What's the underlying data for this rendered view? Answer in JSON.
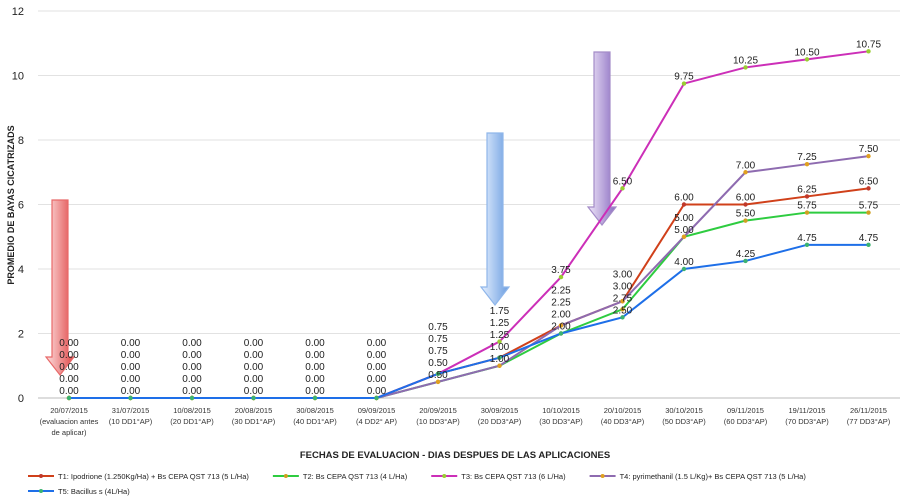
{
  "chart_data": {
    "type": "line",
    "title": "",
    "xlabel": "FECHAS DE EVALUACION - DIAS DESPUES DE LAS APLICACIONES",
    "ylabel": "PROMEDIO DE BAYAS CICATRIZADS",
    "ylim": [
      0,
      12
    ],
    "yticks": [
      0,
      2,
      4,
      6,
      8,
      10,
      12
    ],
    "grid": true,
    "legend_position": "bottom",
    "categories": [
      [
        "20/07/2015",
        "(evaluacion antes",
        "de aplicar)"
      ],
      [
        "31/07/2015",
        "(10 DD1°AP)"
      ],
      [
        "10/08/2015",
        "(20 DD1°AP)"
      ],
      [
        "20/08/2015",
        "(30 DD1°AP)"
      ],
      [
        "30/08/2015",
        "(40 DD1°AP)"
      ],
      [
        "09/09/2015",
        "(4 DD2° AP)"
      ],
      [
        "20/09/2015",
        "(10 DD3°AP)"
      ],
      [
        "30/09/2015",
        "(20 DD3°AP)"
      ],
      [
        "10/10/2015",
        "(30 DD3°AP)"
      ],
      [
        "20/10/2015",
        "(40 DD3°AP)"
      ],
      [
        "30/10/2015",
        "(50 DD3°AP)"
      ],
      [
        "09/11/2015",
        "(60 DD3°AP)"
      ],
      [
        "19/11/2015",
        "(70 DD3°AP)"
      ],
      [
        "26/11/2015",
        "(77 DD3°AP)"
      ]
    ],
    "series": [
      {
        "name": "T1: Ipodrione (1.250Kg/Ha) + Bs CEPA QST 713 (5 L/Ha)",
        "color": "#d0401a",
        "marker": "#c0392b",
        "values": [
          0,
          0,
          0,
          0,
          0,
          0,
          0.75,
          1.25,
          2.25,
          3.0,
          6.0,
          6.0,
          6.25,
          6.5
        ]
      },
      {
        "name": "T2: Bs CEPA QST 713 (4 L/Ha)",
        "color": "#2ecc40",
        "marker": "#d0a020",
        "values": [
          0,
          0,
          0,
          0,
          0,
          0,
          0.5,
          1.0,
          2.0,
          2.75,
          5.0,
          5.5,
          5.75,
          5.75
        ]
      },
      {
        "name": "T3: Bs CEPA QST 713 (6 L/Ha)",
        "color": "#cc2fb8",
        "marker": "#9acd32",
        "values": [
          0,
          0,
          0,
          0,
          0,
          0,
          0.75,
          1.75,
          3.75,
          6.5,
          9.75,
          10.25,
          10.5,
          10.75
        ]
      },
      {
        "name": "T4: pyrimethanil (1.5 L/Kg)+ Bs CEPA QST 713 (5 L/Ha)",
        "color": "#8e6bb0",
        "marker": "#e0a020",
        "values": [
          0,
          0,
          0,
          0,
          0,
          0,
          0.5,
          1.0,
          2.25,
          3.0,
          5.0,
          7.0,
          7.25,
          7.5
        ]
      },
      {
        "name": "T5: Bacillus s (4L/Ha)",
        "color": "#1e6fe8",
        "marker": "#3cb371",
        "values": [
          0,
          0,
          0,
          0,
          0,
          0,
          0.75,
          1.25,
          2.0,
          2.5,
          4.0,
          4.25,
          4.75,
          4.75
        ]
      }
    ],
    "annotations": [
      {
        "type": "arrow-down",
        "at_category": 0,
        "color": "#e86a6a"
      },
      {
        "type": "arrow-down",
        "at_category": 7,
        "color": "#8fb6ea"
      },
      {
        "type": "arrow-down",
        "at_category": 9,
        "color": "#a48cc8"
      }
    ]
  }
}
